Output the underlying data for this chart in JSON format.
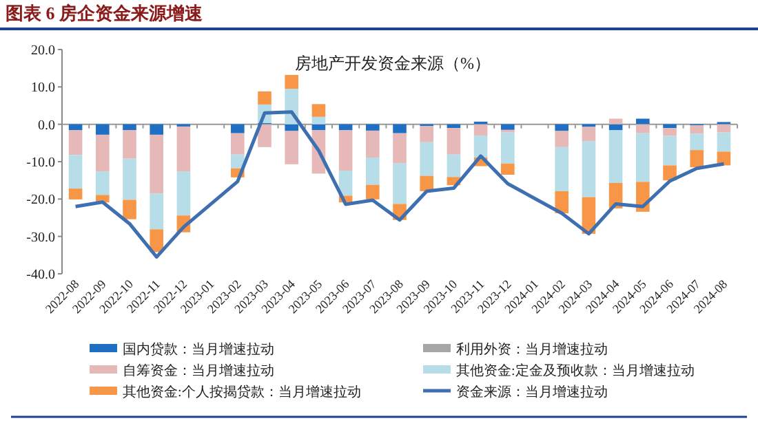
{
  "chart_data": {
    "type": "bar",
    "title": "图表 6 房企资金来源增速",
    "subtitle": "房地产开发资金来源（%）",
    "stacked": true,
    "categories": [
      "2022-08",
      "2022-09",
      "2022-10",
      "2022-11",
      "2022-12",
      "2023-01",
      "2023-02",
      "2023-03",
      "2023-04",
      "2023-05",
      "2023-06",
      "2023-07",
      "2023-08",
      "2023-09",
      "2023-10",
      "2023-11",
      "2023-12",
      "2024-01",
      "2024-02",
      "2024-03",
      "2024-04",
      "2024-05",
      "2024-06",
      "2024-07",
      "2024-08"
    ],
    "series": [
      {
        "name": "国内贷款：当月增速拉动",
        "color": "#1f6fc5",
        "values": [
          -1.6,
          -2.8,
          -1.6,
          -2.8,
          -0.6,
          null,
          -2.4,
          0.3,
          -1.8,
          -1.6,
          -1.6,
          -1.7,
          -2.4,
          -0.5,
          -1.0,
          0.7,
          -1.5,
          null,
          -1.8,
          -0.7,
          -1.6,
          1.5,
          -1.0,
          -0.3,
          0.6
        ]
      },
      {
        "name": "利用外资：当月增速拉动",
        "color": "#a6a6a6",
        "values": [
          0,
          0,
          0,
          0,
          0,
          null,
          0,
          0,
          0,
          0,
          0,
          0,
          0,
          0,
          0,
          0,
          0,
          null,
          0,
          0,
          0,
          0,
          0,
          0,
          0
        ]
      },
      {
        "name": "自筹资金：当月增速拉动",
        "color": "#e6b9b8",
        "values": [
          -6.6,
          -9.8,
          -7.6,
          -15.7,
          -12.0,
          null,
          -5.7,
          -6.1,
          -8.9,
          -11.6,
          -10.8,
          -7.2,
          -8.0,
          -4.3,
          -7.1,
          -3.0,
          -0.7,
          null,
          -4.3,
          -3.8,
          1.5,
          -2.4,
          -2.1,
          -2.2,
          -2.2
        ]
      },
      {
        "name": "其他资金:定金及预收款：当月增速拉动",
        "color": "#b7dde8",
        "values": [
          -9.0,
          -6.3,
          -11.0,
          -9.6,
          -11.8,
          null,
          -3.7,
          5.0,
          9.5,
          2.0,
          -6.7,
          -7.3,
          -10.9,
          -9.0,
          -6.0,
          -5.9,
          -8.3,
          null,
          -11.8,
          -15.0,
          -14.1,
          -13.0,
          -7.9,
          -4.4,
          -5.1
        ]
      },
      {
        "name": "其他资金:个人按揭贷款：当月增速拉动",
        "color": "#f79646",
        "values": [
          -2.9,
          -2.0,
          -5.2,
          -6.1,
          -4.5,
          null,
          -2.4,
          3.5,
          3.7,
          3.4,
          -1.8,
          -3.9,
          -4.3,
          -4.1,
          -2.2,
          -2.3,
          -3.0,
          null,
          -5.9,
          -9.8,
          -6.8,
          -8.0,
          -4.0,
          -4.6,
          -3.7
        ]
      },
      {
        "name": "资金来源：当月增速拉动",
        "type": "line",
        "color": "#3e6fb0",
        "values": [
          -22.0,
          -20.8,
          -26.6,
          -35.5,
          -27.5,
          null,
          -15.3,
          3.0,
          3.3,
          -7.0,
          -21.4,
          -20.3,
          -25.6,
          -17.9,
          -17.1,
          -8.5,
          -15.9,
          null,
          -23.8,
          -29.3,
          -21.3,
          -22.0,
          -15.2,
          -11.8,
          -10.6
        ]
      }
    ],
    "ylim": [
      -40,
      20
    ],
    "yticks": [
      {
        "value": -40,
        "label": "-40.0"
      },
      {
        "value": -30,
        "label": "-30.0"
      },
      {
        "value": -20,
        "label": "-20.0"
      },
      {
        "value": -10,
        "label": "-10.0"
      },
      {
        "value": 0,
        "label": "0.0"
      },
      {
        "value": 10,
        "label": "10.0"
      },
      {
        "value": 20,
        "label": "20.0"
      }
    ],
    "legend": "bottom"
  }
}
